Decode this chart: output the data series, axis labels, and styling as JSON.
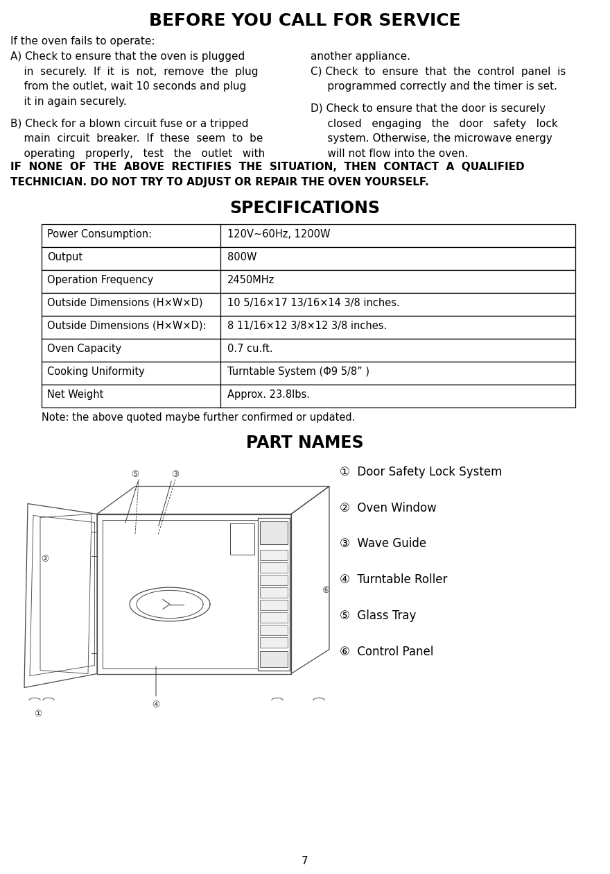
{
  "title": "BEFORE YOU CALL FOR SERVICE",
  "intro": "If the oven fails to operate:",
  "col_left_lines": [
    [
      "A) Check to ensure that the oven is plugged",
      0.0
    ],
    [
      "    in  securely.  If  it  is  not,  remove  the  plug",
      1.0
    ],
    [
      "    from the outlet, wait 10 seconds and plug",
      2.0
    ],
    [
      "    it in again securely.",
      3.0
    ],
    [
      "B) Check for a blown circuit fuse or a tripped",
      4.5
    ],
    [
      "    main  circuit  breaker.  If  these  seem  to  be",
      5.5
    ],
    [
      "    operating   properly,   test   the   outlet   with",
      6.5
    ]
  ],
  "col_right_lines": [
    [
      "another appliance.",
      0.0
    ],
    [
      "C) Check  to  ensure  that  the  control  panel  is",
      1.0
    ],
    [
      "     programmed correctly and the timer is set.",
      2.0
    ],
    [
      "D) Check to ensure that the door is securely",
      3.5
    ],
    [
      "     closed   engaging   the   door   safety   lock",
      4.5
    ],
    [
      "     system. Otherwise, the microwave energy",
      5.5
    ],
    [
      "     will not flow into the oven.",
      6.5
    ]
  ],
  "warning1": "IF  NONE  OF  THE  ABOVE  RECTIFIES  THE  SITUATION,  THEN  CONTACT  A  QUALIFIED",
  "warning2": "TECHNICIAN. DO NOT TRY TO ADJUST OR REPAIR THE OVEN YOURSELF.",
  "spec_title": "SPECIFICATIONS",
  "spec_rows": [
    [
      "Power Consumption:",
      "120V~60Hz, 1200W"
    ],
    [
      "Output",
      "800W"
    ],
    [
      "Operation Frequency",
      "2450MHz"
    ],
    [
      "Outside Dimensions (H×W×D)",
      "10 5/16×17 13/16×14 3/8 inches."
    ],
    [
      "Outside Dimensions (H×W×D):",
      "8 11/16×12 3/8×12 3/8 inches."
    ],
    [
      "Oven Capacity",
      "0.7 cu.ft."
    ],
    [
      "Cooking Uniformity",
      "Turntable System (Φ9 5/8” )"
    ],
    [
      "Net Weight",
      "Approx. 23.8lbs."
    ]
  ],
  "note": "Note: the above quoted maybe further confirmed or updated.",
  "part_title": "PART NAMES",
  "parts": [
    "①  Door Safety Lock System",
    "②  Oven Window",
    "③  Wave Guide",
    "④  Turntable Roller",
    "⑤  Glass Tray",
    "⑥  Control Panel"
  ],
  "page_number": "7",
  "bg_color": "#ffffff",
  "text_color": "#000000"
}
